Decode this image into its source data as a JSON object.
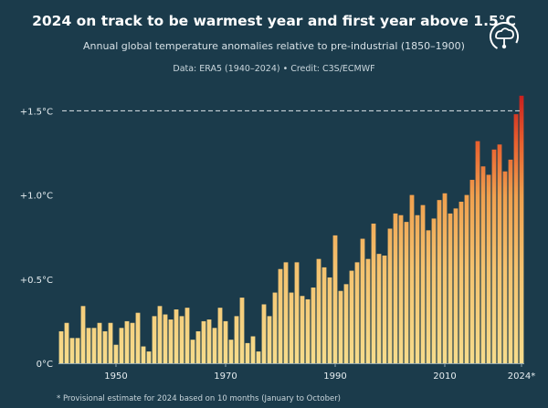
{
  "header": {
    "title": "2024 on track to be warmest year and first year above 1.5°C",
    "subtitle": "Annual global temperature anomalies relative to pre-industrial (1850–1900)",
    "source": "Data: ERA5 (1940–2024) • Credit: C3S/ECMWF",
    "logo_icon": "thermometer-cloud-icon"
  },
  "footnote": "* Provisional estimate for 2024 based on 10 months (January to October)",
  "colors": {
    "background": "#1b3b4b",
    "bar_low": "#f6dc8c",
    "bar_mid": "#f0a04e",
    "bar_high": "#c81e1e",
    "threshold_line": "#c8d2d8",
    "text": "#ffffff"
  },
  "chart_data": {
    "type": "bar",
    "title": "2024 on track to be warmest year and first year above 1.5°C",
    "subtitle": "Annual global temperature anomalies relative to pre-industrial (1850–1900)",
    "xlabel": "",
    "ylabel": "",
    "ylim": [
      0,
      1.6
    ],
    "yticks": [
      {
        "value": 0,
        "label": "0°C"
      },
      {
        "value": 0.5,
        "label": "+0.5°C"
      },
      {
        "value": 1.0,
        "label": "+1.0°C"
      },
      {
        "value": 1.5,
        "label": "+1.5°C"
      }
    ],
    "xticks": [
      {
        "value": 1950,
        "label": "1950"
      },
      {
        "value": 1970,
        "label": "1970"
      },
      {
        "value": 1990,
        "label": "1990"
      },
      {
        "value": 2010,
        "label": "2010"
      },
      {
        "value": 2024,
        "label": "2024*"
      }
    ],
    "threshold": {
      "value": 1.5,
      "style": "dashed"
    },
    "grid": false,
    "categories": [
      1940,
      1941,
      1942,
      1943,
      1944,
      1945,
      1946,
      1947,
      1948,
      1949,
      1950,
      1951,
      1952,
      1953,
      1954,
      1955,
      1956,
      1957,
      1958,
      1959,
      1960,
      1961,
      1962,
      1963,
      1964,
      1965,
      1966,
      1967,
      1968,
      1969,
      1970,
      1971,
      1972,
      1973,
      1974,
      1975,
      1976,
      1977,
      1978,
      1979,
      1980,
      1981,
      1982,
      1983,
      1984,
      1985,
      1986,
      1987,
      1988,
      1989,
      1990,
      1991,
      1992,
      1993,
      1994,
      1995,
      1996,
      1997,
      1998,
      1999,
      2000,
      2001,
      2002,
      2003,
      2004,
      2005,
      2006,
      2007,
      2008,
      2009,
      2010,
      2011,
      2012,
      2013,
      2014,
      2015,
      2016,
      2017,
      2018,
      2019,
      2020,
      2021,
      2022,
      2023,
      2024
    ],
    "values": [
      0.19,
      0.24,
      0.15,
      0.15,
      0.34,
      0.21,
      0.21,
      0.24,
      0.19,
      0.24,
      0.11,
      0.21,
      0.25,
      0.24,
      0.3,
      0.1,
      0.07,
      0.28,
      0.34,
      0.29,
      0.26,
      0.32,
      0.28,
      0.33,
      0.14,
      0.19,
      0.25,
      0.26,
      0.21,
      0.33,
      0.25,
      0.14,
      0.28,
      0.39,
      0.12,
      0.16,
      0.07,
      0.35,
      0.28,
      0.42,
      0.56,
      0.6,
      0.42,
      0.6,
      0.4,
      0.38,
      0.45,
      0.62,
      0.57,
      0.51,
      0.76,
      0.43,
      0.47,
      0.55,
      0.6,
      0.74,
      0.62,
      0.83,
      0.65,
      0.64,
      0.8,
      0.89,
      0.88,
      0.84,
      1.0,
      0.88,
      0.94,
      0.79,
      0.86,
      0.97,
      1.01,
      0.89,
      0.92,
      0.96,
      1.0,
      1.09,
      1.32,
      1.17,
      1.12,
      1.27,
      1.3,
      1.14,
      1.21,
      1.48,
      1.59
    ]
  }
}
